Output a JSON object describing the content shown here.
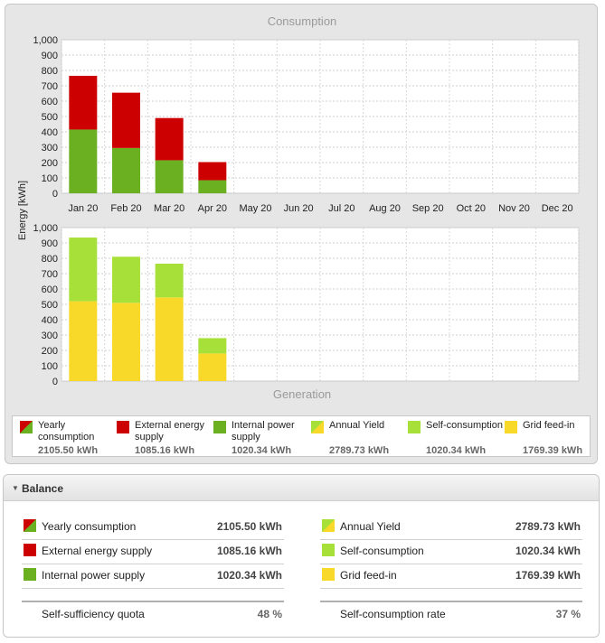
{
  "chart_data": [
    {
      "type": "bar",
      "title": "Consumption",
      "ylabel": "Energy [kWh]",
      "stacked": true,
      "categories": [
        "Jan 20",
        "Feb 20",
        "Mar 20",
        "Apr 20",
        "May 20",
        "Jun 20",
        "Jul 20",
        "Aug 20",
        "Sep 20",
        "Oct 20",
        "Nov 20",
        "Dec 20"
      ],
      "yticks": [
        "0",
        "100",
        "200",
        "300",
        "400",
        "500",
        "600",
        "700",
        "800",
        "900",
        "1,000"
      ],
      "ylim": [
        0,
        1000
      ],
      "grid": true,
      "series": [
        {
          "name": "Internal power supply",
          "color": "#6ab020",
          "values": [
            415,
            295,
            215,
            85,
            0,
            0,
            0,
            0,
            0,
            0,
            0,
            0
          ]
        },
        {
          "name": "External energy supply",
          "color": "#cc0000",
          "values": [
            350,
            360,
            275,
            118,
            0,
            0,
            0,
            0,
            0,
            0,
            0,
            0
          ]
        }
      ]
    },
    {
      "type": "bar",
      "title": "Generation",
      "ylabel": "Energy [kWh]",
      "stacked": true,
      "categories": [
        "Jan 20",
        "Feb 20",
        "Mar 20",
        "Apr 20",
        "May 20",
        "Jun 20",
        "Jul 20",
        "Aug 20",
        "Sep 20",
        "Oct 20",
        "Nov 20",
        "Dec 20"
      ],
      "yticks": [
        "0",
        "100",
        "200",
        "300",
        "400",
        "500",
        "600",
        "700",
        "800",
        "900",
        "1,000"
      ],
      "ylim": [
        0,
        1000
      ],
      "grid": true,
      "series": [
        {
          "name": "Grid feed-in",
          "color": "#f8d92a",
          "values": [
            520,
            510,
            545,
            180,
            0,
            0,
            0,
            0,
            0,
            0,
            0,
            0
          ]
        },
        {
          "name": "Self-consumption",
          "color": "#a8e03a",
          "values": [
            415,
            300,
            220,
            100,
            0,
            0,
            0,
            0,
            0,
            0,
            0,
            0
          ]
        }
      ]
    }
  ],
  "legend": [
    {
      "label": "Yearly consumption",
      "value": "2105.50 kWh",
      "swatch": "consumption"
    },
    {
      "label": "External energy supply",
      "value": "1085.16 kWh",
      "swatch": "external"
    },
    {
      "label": "Internal power supply",
      "value": "1020.34 kWh",
      "swatch": "internal"
    },
    {
      "label": "Annual Yield",
      "value": "2789.73 kWh",
      "swatch": "yield"
    },
    {
      "label": "Self-consumption",
      "value": "1020.34 kWh",
      "swatch": "self"
    },
    {
      "label": "Grid feed-in",
      "value": "1769.39 kWh",
      "swatch": "feedin"
    }
  ],
  "colors": {
    "external": "#cc0000",
    "internal": "#6ab020",
    "self": "#a8e03a",
    "feedin": "#f8d92a"
  },
  "balance": {
    "title": "Balance",
    "left": [
      {
        "label": "Yearly consumption",
        "value": "2105.50 kWh",
        "swatch": "consumption"
      },
      {
        "label": "External energy supply",
        "value": "1085.16 kWh",
        "swatch": "external"
      },
      {
        "label": "Internal power supply",
        "value": "1020.34 kWh",
        "swatch": "internal"
      }
    ],
    "right": [
      {
        "label": "Annual Yield",
        "value": "2789.73 kWh",
        "swatch": "yield"
      },
      {
        "label": "Self-consumption",
        "value": "1020.34 kWh",
        "swatch": "self"
      },
      {
        "label": "Grid feed-in",
        "value": "1769.39 kWh",
        "swatch": "feedin"
      }
    ],
    "left_quota": {
      "label": "Self-sufficiency quota",
      "value": "48 %"
    },
    "right_quota": {
      "label": "Self-consumption rate",
      "value": "37 %"
    }
  }
}
